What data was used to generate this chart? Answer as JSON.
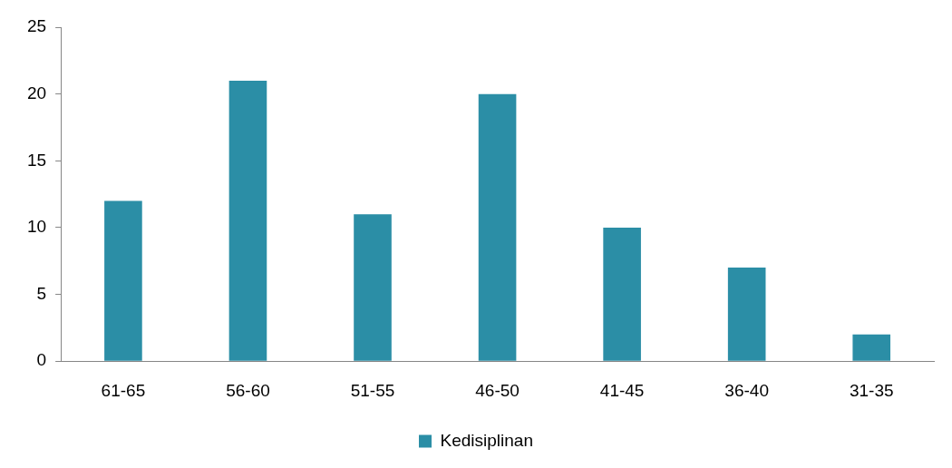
{
  "chart_data": {
    "type": "bar",
    "categories": [
      "61-65",
      "56-60",
      "51-55",
      "46-50",
      "41-45",
      "36-40",
      "31-35"
    ],
    "series": [
      {
        "name": "Kedisiplinan",
        "color": "#2b8ea6",
        "values": [
          12,
          21,
          11,
          20,
          10,
          7,
          2
        ]
      }
    ],
    "ylim": [
      0,
      25
    ],
    "yticks": [
      0,
      5,
      10,
      15,
      20,
      25
    ],
    "grid": false,
    "legend": "bottom"
  }
}
